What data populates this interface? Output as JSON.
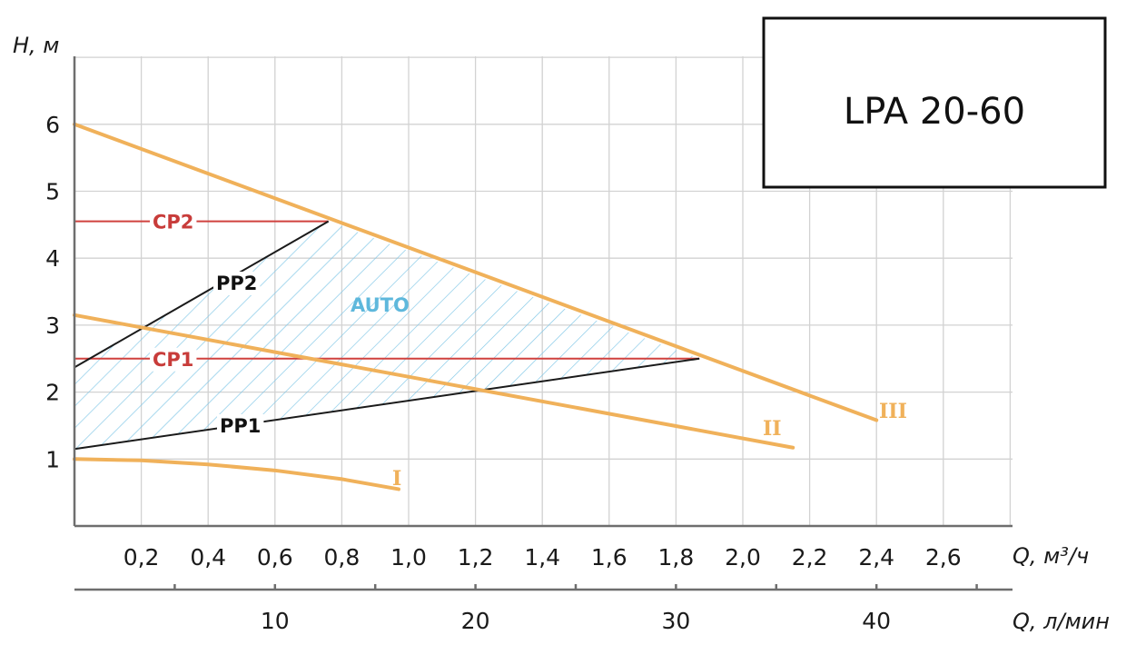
{
  "chart_data": {
    "type": "line",
    "title": "LPA 20-60",
    "ylabel": "H, м",
    "xlabel": "Q, м³/ч",
    "x2label": "Q, л/мин",
    "xlim": [
      0,
      2.8
    ],
    "ylim": [
      0,
      7
    ],
    "grid": true,
    "yticks": [
      "1",
      "2",
      "3",
      "4",
      "5",
      "6"
    ],
    "xticks": [
      "0,2",
      "0,4",
      "0,6",
      "0,8",
      "1,0",
      "1,2",
      "1,4",
      "1,6",
      "1,8",
      "2,0",
      "2,2",
      "2,4",
      "2,6"
    ],
    "x2ticks": [
      "10",
      "20",
      "30",
      "40"
    ],
    "series": [
      {
        "name": "III",
        "color": "#f0b15a",
        "x": [
          0,
          2.4
        ],
        "y": [
          6.0,
          1.58
        ]
      },
      {
        "name": "II",
        "color": "#f0b15a",
        "x": [
          0,
          2.15
        ],
        "y": [
          3.15,
          1.17
        ]
      },
      {
        "name": "I",
        "color": "#f0b15a",
        "x": [
          0,
          0.2,
          0.4,
          0.6,
          0.8,
          0.97
        ],
        "y": [
          1.0,
          0.98,
          0.92,
          0.83,
          0.7,
          0.55
        ]
      },
      {
        "name": "CP2",
        "color": "#d0413e",
        "x": [
          0,
          0.76
        ],
        "y": [
          4.55,
          4.55
        ]
      },
      {
        "name": "CP1",
        "color": "#d0413e",
        "x": [
          0,
          1.87
        ],
        "y": [
          2.5,
          2.5
        ]
      },
      {
        "name": "PP2",
        "color": "#1a1a1a",
        "x": [
          0,
          0.76
        ],
        "y": [
          2.37,
          4.55
        ]
      },
      {
        "name": "PP1",
        "color": "#1a1a1a",
        "x": [
          0,
          1.87
        ],
        "y": [
          1.15,
          2.5
        ]
      }
    ],
    "regions": [
      {
        "name": "AUTO",
        "color": "#5eb8dc",
        "x": [
          0,
          0.76,
          1.87,
          0
        ],
        "y": [
          2.37,
          4.55,
          2.5,
          1.15
        ]
      }
    ],
    "x2_per_x1": 16.667
  }
}
